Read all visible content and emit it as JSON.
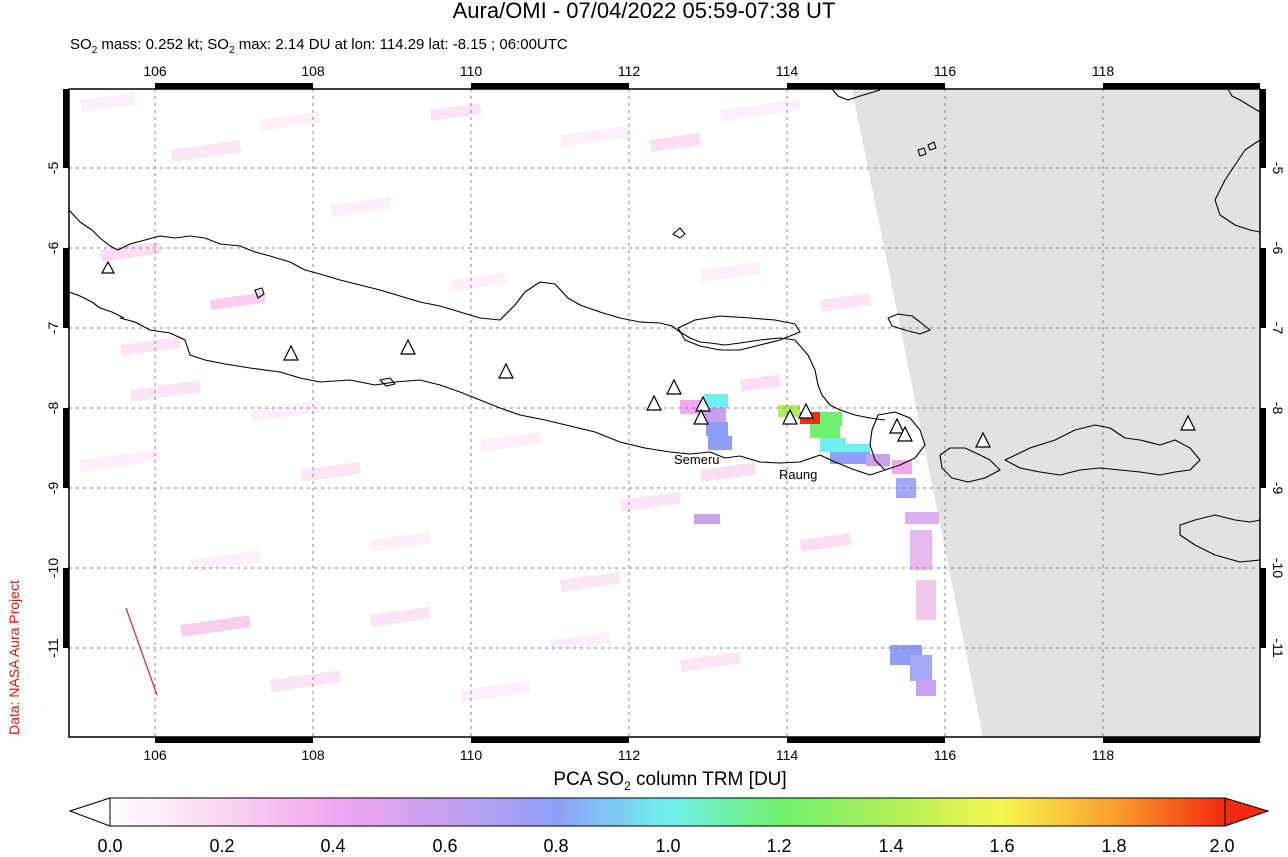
{
  "title": "Aura/OMI - 07/04/2022 05:59-07:38 UT",
  "subtitle": {
    "prefix": "SO",
    "sub": "2",
    "mid1": " mass: 0.252 kt; SO",
    "sub2": "2",
    "mid2": " max: 2.14 DU at lon: 114.29 lat: -8.15 ; 06:00UTC"
  },
  "credit": "Data: NASA Aura Project",
  "map": {
    "lon_ticks": [
      "106",
      "108",
      "110",
      "112",
      "114",
      "116",
      "118"
    ],
    "lat_ticks": [
      "-5",
      "-6",
      "-7",
      "-8",
      "-9",
      "-10",
      "-11"
    ],
    "volcano_labels": [
      "Semeru",
      "Raung"
    ],
    "no_data_color": "#e2e2e2",
    "coastline_color": "#000000",
    "grid_style": "dashed gray"
  },
  "colorbar": {
    "label_pre": "PCA SO",
    "label_sub": "2",
    "label_post": " column TRM [DU]",
    "ticks": [
      "0.0",
      "0.2",
      "0.4",
      "0.6",
      "0.8",
      "1.0",
      "1.2",
      "1.4",
      "1.6",
      "1.8",
      "2.0"
    ],
    "colors": [
      "#ffffff",
      "#fbd7f0",
      "#f2a8f0",
      "#c8a0f0",
      "#8f9ff8",
      "#6ff0f0",
      "#6ff06f",
      "#aef05a",
      "#f6f650",
      "#f9a02c",
      "#f42a10"
    ]
  }
}
